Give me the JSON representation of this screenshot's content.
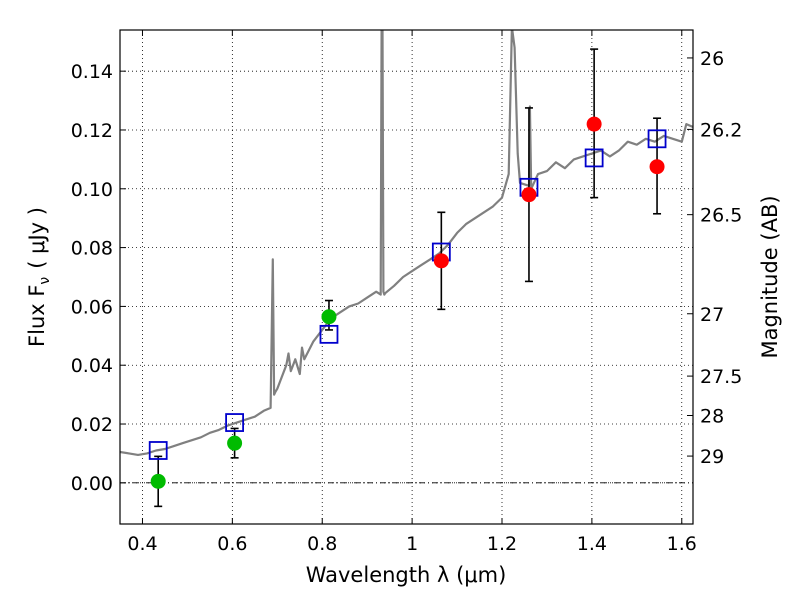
{
  "chart_data": {
    "type": "scatter",
    "title": "",
    "xlabel": "Wavelength  λ (μm)",
    "ylabel": "Flux  F",
    "ylabel_sub": "ν",
    "ylabel_unit": "( μJy )",
    "y2label": "Magnitude (AB)",
    "xlim": [
      0.35,
      1.625
    ],
    "ylim": [
      -0.014,
      0.154
    ],
    "grid": true,
    "x_ticks": [
      {
        "value": 0.4,
        "label": "0.4"
      },
      {
        "value": 0.6,
        "label": "0.6"
      },
      {
        "value": 0.8,
        "label": "0.8"
      },
      {
        "value": 1.0,
        "label": "1"
      },
      {
        "value": 1.2,
        "label": "1.2"
      },
      {
        "value": 1.4,
        "label": "1.4"
      },
      {
        "value": 1.6,
        "label": "1.6"
      }
    ],
    "y_ticks": [
      {
        "value": 0.0,
        "label": "0.00"
      },
      {
        "value": 0.02,
        "label": "0.02"
      },
      {
        "value": 0.04,
        "label": "0.04"
      },
      {
        "value": 0.06,
        "label": "0.06"
      },
      {
        "value": 0.08,
        "label": "0.08"
      },
      {
        "value": 0.1,
        "label": "0.10"
      },
      {
        "value": 0.12,
        "label": "0.12"
      },
      {
        "value": 0.14,
        "label": "0.14"
      }
    ],
    "y2_ticks": [
      {
        "label": "26",
        "flux": 0.1445
      },
      {
        "label": "26.2",
        "flux": 0.1202
      },
      {
        "label": "26.5",
        "flux": 0.0912
      },
      {
        "label": "27",
        "flux": 0.0575
      },
      {
        "label": "27.5",
        "flux": 0.0363
      },
      {
        "label": "28",
        "flux": 0.0229
      },
      {
        "label": "29",
        "flux": 0.0091
      }
    ],
    "colors": {
      "model": "#808080",
      "green_points": "#00bb00",
      "red_points": "#ff0000",
      "squares": "#0000cc",
      "error_bars": "#000000",
      "zero_line": "#000000"
    },
    "series": [
      {
        "name": "model spectrum",
        "kind": "line",
        "x": [
          0.35,
          0.37,
          0.39,
          0.41,
          0.43,
          0.45,
          0.47,
          0.49,
          0.51,
          0.53,
          0.55,
          0.57,
          0.59,
          0.61,
          0.63,
          0.65,
          0.67,
          0.685,
          0.69,
          0.693,
          0.696,
          0.7,
          0.72,
          0.725,
          0.73,
          0.74,
          0.75,
          0.755,
          0.76,
          0.78,
          0.8,
          0.82,
          0.84,
          0.86,
          0.88,
          0.9,
          0.92,
          0.93,
          0.932,
          0.934,
          0.936,
          0.938,
          0.94,
          0.96,
          0.98,
          1.0,
          1.02,
          1.04,
          1.06,
          1.08,
          1.1,
          1.12,
          1.14,
          1.16,
          1.18,
          1.2,
          1.215,
          1.222,
          1.228,
          1.235,
          1.24,
          1.26,
          1.262,
          1.265,
          1.28,
          1.3,
          1.32,
          1.34,
          1.36,
          1.38,
          1.4,
          1.42,
          1.44,
          1.46,
          1.48,
          1.5,
          1.52,
          1.54,
          1.56,
          1.58,
          1.6,
          1.61,
          1.625
        ],
        "y": [
          0.0105,
          0.01,
          0.0095,
          0.01,
          0.011,
          0.0115,
          0.0125,
          0.0135,
          0.0145,
          0.0155,
          0.017,
          0.018,
          0.0195,
          0.0205,
          0.0215,
          0.0225,
          0.0245,
          0.0255,
          0.076,
          0.03,
          0.031,
          0.032,
          0.04,
          0.044,
          0.038,
          0.042,
          0.037,
          0.046,
          0.042,
          0.048,
          0.052,
          0.056,
          0.058,
          0.06,
          0.061,
          0.063,
          0.065,
          0.064,
          0.155,
          0.155,
          0.065,
          0.064,
          0.0645,
          0.067,
          0.07,
          0.072,
          0.074,
          0.076,
          0.078,
          0.081,
          0.085,
          0.088,
          0.09,
          0.092,
          0.094,
          0.097,
          0.105,
          0.155,
          0.148,
          0.112,
          0.102,
          0.101,
          0.128,
          0.1,
          0.105,
          0.106,
          0.109,
          0.107,
          0.11,
          0.111,
          0.112,
          0.113,
          0.111,
          0.113,
          0.116,
          0.115,
          0.117,
          0.116,
          0.118,
          0.117,
          0.116,
          0.122,
          0.121
        ]
      },
      {
        "name": "observed (green)",
        "kind": "points",
        "x": [
          0.435,
          0.605,
          0.815
        ],
        "y": [
          0.0005,
          0.0135,
          0.0565
        ],
        "yerr_low": [
          0.0085,
          0.005,
          0.0045
        ],
        "yerr_high": [
          0.0085,
          0.005,
          0.0055
        ]
      },
      {
        "name": "observed (red)",
        "kind": "points",
        "x": [
          1.065,
          1.26,
          1.405,
          1.545
        ],
        "y": [
          0.0755,
          0.098,
          0.122,
          0.1075
        ],
        "yerr_low": [
          0.0165,
          0.0295,
          0.025,
          0.016
        ],
        "yerr_high": [
          0.0165,
          0.0295,
          0.0255,
          0.0165
        ]
      },
      {
        "name": "model photometry",
        "kind": "squares",
        "x": [
          0.435,
          0.605,
          0.815,
          1.065,
          1.26,
          1.405,
          1.545
        ],
        "y": [
          0.011,
          0.0205,
          0.0505,
          0.0785,
          0.1005,
          0.1105,
          0.117
        ]
      }
    ]
  }
}
